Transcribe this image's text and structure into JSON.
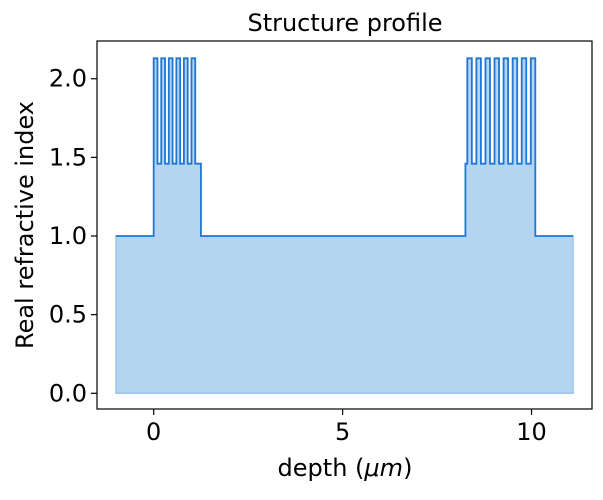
{
  "chart_data": {
    "type": "area",
    "title": "Structure profile",
    "xlabel": "depth (μm)",
    "xlabel_parts": {
      "prefix": "depth (",
      "math": "μm",
      "suffix": ")"
    },
    "ylabel": "Real refractive index",
    "xlim": [
      -1.5,
      11.6
    ],
    "ylim": [
      -0.1,
      2.24
    ],
    "xticks": [
      0,
      5,
      10
    ],
    "xtick_labels": [
      "0",
      "5",
      "10"
    ],
    "yticks": [
      0.0,
      0.5,
      1.0,
      1.5,
      2.0
    ],
    "ytick_labels": [
      "0.0",
      "0.5",
      "1.0",
      "1.5",
      "2.0"
    ],
    "grid": false,
    "legend": "none",
    "colors": {
      "line": "#1f77d4",
      "fill": "#b3d5f2"
    },
    "series": [
      {
        "step": true,
        "profile": [
          {
            "x": -1.0,
            "y": 1.0
          },
          {
            "x": 0.0,
            "y": 1.0
          },
          {
            "x": 0.0,
            "y": 1.46
          },
          {
            "x": 0.0,
            "y": 2.13
          },
          {
            "x": 0.1,
            "y": 2.13
          },
          {
            "x": 0.1,
            "y": 1.46
          },
          {
            "x": 0.2,
            "y": 1.46
          },
          {
            "x": 0.2,
            "y": 2.13
          },
          {
            "x": 0.3,
            "y": 2.13
          },
          {
            "x": 0.3,
            "y": 1.46
          },
          {
            "x": 0.4,
            "y": 1.46
          },
          {
            "x": 0.4,
            "y": 2.13
          },
          {
            "x": 0.5,
            "y": 2.13
          },
          {
            "x": 0.5,
            "y": 1.46
          },
          {
            "x": 0.6,
            "y": 1.46
          },
          {
            "x": 0.6,
            "y": 2.13
          },
          {
            "x": 0.7,
            "y": 2.13
          },
          {
            "x": 0.7,
            "y": 1.46
          },
          {
            "x": 0.8,
            "y": 1.46
          },
          {
            "x": 0.8,
            "y": 2.13
          },
          {
            "x": 0.9,
            "y": 2.13
          },
          {
            "x": 0.9,
            "y": 1.46
          },
          {
            "x": 1.0,
            "y": 1.46
          },
          {
            "x": 1.0,
            "y": 2.13
          },
          {
            "x": 1.1,
            "y": 2.13
          },
          {
            "x": 1.1,
            "y": 1.46
          },
          {
            "x": 1.25,
            "y": 1.46
          },
          {
            "x": 1.25,
            "y": 1.0
          },
          {
            "x": 8.25,
            "y": 1.0
          },
          {
            "x": 8.25,
            "y": 1.46
          },
          {
            "x": 8.3,
            "y": 1.46
          },
          {
            "x": 8.3,
            "y": 2.13
          },
          {
            "x": 8.42,
            "y": 2.13
          },
          {
            "x": 8.42,
            "y": 1.46
          },
          {
            "x": 8.54,
            "y": 1.46
          },
          {
            "x": 8.54,
            "y": 2.13
          },
          {
            "x": 8.66,
            "y": 2.13
          },
          {
            "x": 8.66,
            "y": 1.46
          },
          {
            "x": 8.78,
            "y": 1.46
          },
          {
            "x": 8.78,
            "y": 2.13
          },
          {
            "x": 8.9,
            "y": 2.13
          },
          {
            "x": 8.9,
            "y": 1.46
          },
          {
            "x": 9.02,
            "y": 1.46
          },
          {
            "x": 9.02,
            "y": 2.13
          },
          {
            "x": 9.14,
            "y": 2.13
          },
          {
            "x": 9.14,
            "y": 1.46
          },
          {
            "x": 9.26,
            "y": 1.46
          },
          {
            "x": 9.26,
            "y": 2.13
          },
          {
            "x": 9.38,
            "y": 2.13
          },
          {
            "x": 9.38,
            "y": 1.46
          },
          {
            "x": 9.5,
            "y": 1.46
          },
          {
            "x": 9.5,
            "y": 2.13
          },
          {
            "x": 9.62,
            "y": 2.13
          },
          {
            "x": 9.62,
            "y": 1.46
          },
          {
            "x": 9.74,
            "y": 1.46
          },
          {
            "x": 9.74,
            "y": 2.13
          },
          {
            "x": 9.86,
            "y": 2.13
          },
          {
            "x": 9.86,
            "y": 1.46
          },
          {
            "x": 9.98,
            "y": 1.46
          },
          {
            "x": 9.98,
            "y": 2.13
          },
          {
            "x": 10.1,
            "y": 2.13
          },
          {
            "x": 10.1,
            "y": 1.46
          },
          {
            "x": 10.1,
            "y": 1.0
          },
          {
            "x": 11.1,
            "y": 1.0
          }
        ]
      }
    ]
  }
}
